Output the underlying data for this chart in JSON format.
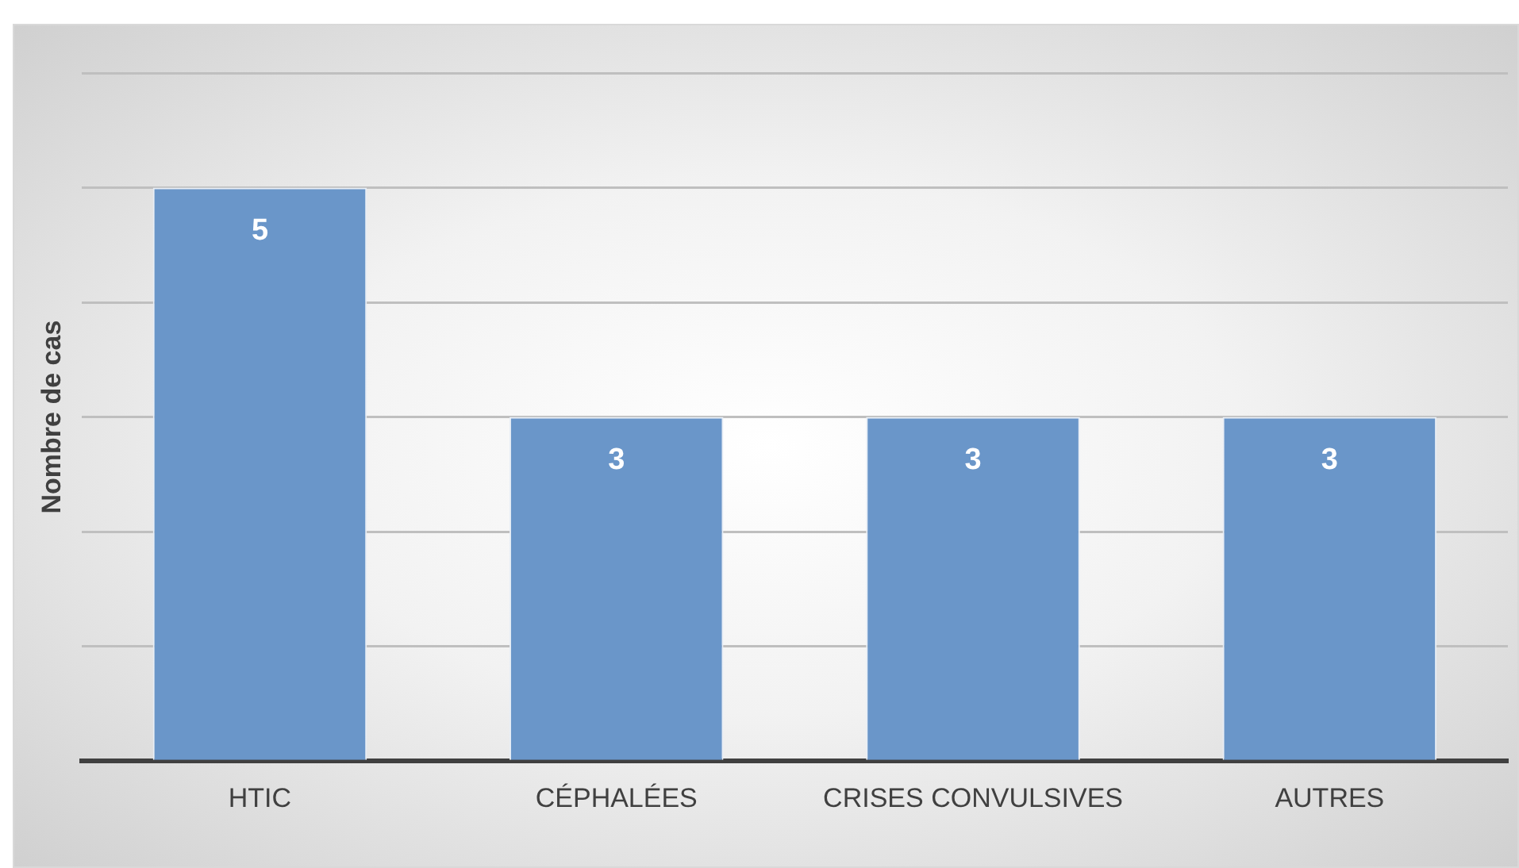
{
  "chart_data": {
    "type": "bar",
    "ylabel": "Nombre de cas",
    "categories": [
      "HTIC",
      "CÉPHALÉES",
      "CRISES CONVULSIVES",
      "AUTRES"
    ],
    "values": [
      5,
      3,
      3,
      3
    ],
    "color": "#6a96c9",
    "ylim": [
      0,
      6
    ],
    "yticks": [
      {
        "value": 0,
        "label": null
      },
      {
        "value": 1,
        "label": null
      },
      {
        "value": 2,
        "label": null
      },
      {
        "value": 3,
        "label": null
      },
      {
        "value": 4,
        "label": null
      },
      {
        "value": 5,
        "label": null
      },
      {
        "value": 6,
        "label": null
      }
    ],
    "tick_labels": "x",
    "grid": "y",
    "data_labels": true
  }
}
